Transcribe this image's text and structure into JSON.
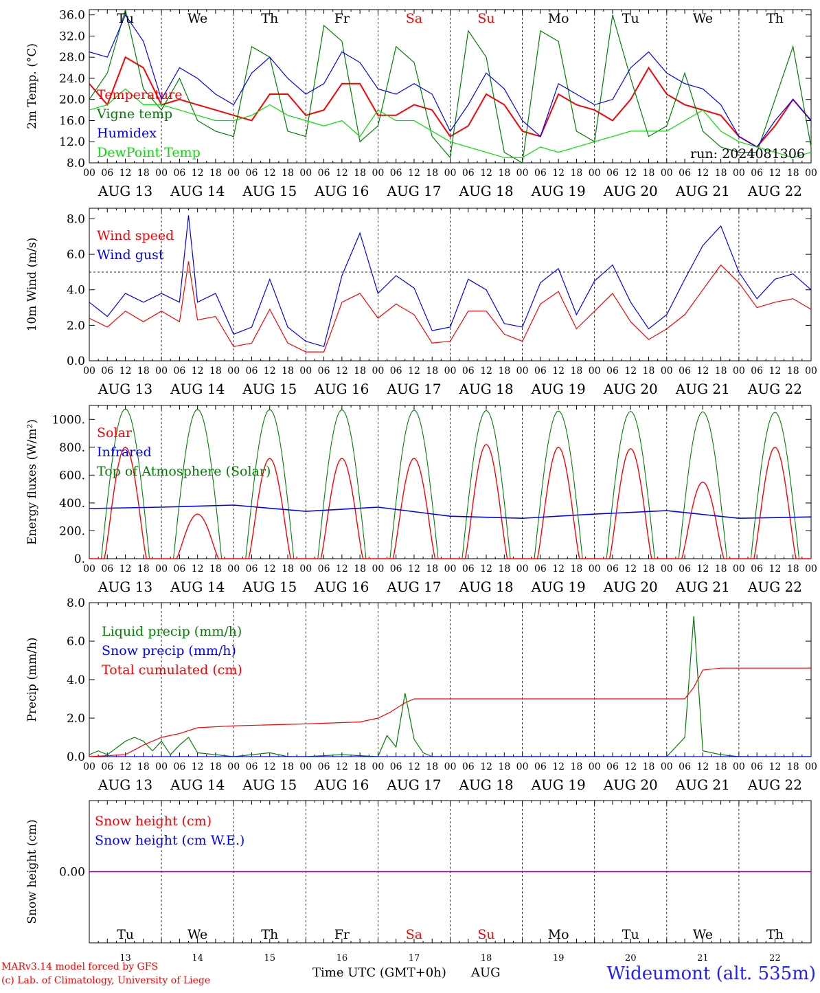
{
  "time_axis": {
    "hour_ticks": [
      "00",
      "06",
      "12",
      "18"
    ],
    "dates": [
      "AUG 13",
      "AUG 14",
      "AUG 15",
      "AUG 16",
      "AUG 17",
      "AUG 18",
      "AUG 19",
      "AUG 20",
      "AUG 21",
      "AUG 22"
    ],
    "weekdays": [
      "Tu",
      "We",
      "Th",
      "Fr",
      "Sa",
      "Su",
      "Mo",
      "Tu",
      "We",
      "Th"
    ],
    "weekday_colors": [
      "#000000",
      "#000000",
      "#000000",
      "#000000",
      "#ff0000",
      "#ff0000",
      "#000000",
      "#000000",
      "#000000",
      "#000000"
    ],
    "day_numbers": [
      "13",
      "14",
      "15",
      "16",
      "17",
      "18",
      "19",
      "20",
      "21",
      "22"
    ],
    "title": "Time UTC (GMT+0h)",
    "month": "AUG"
  },
  "run_label": "run: 2024081306",
  "footer": {
    "credit_line1": "MARv3.14 model forced by GFS",
    "credit_line2": "(c) Lab. of Climatology, University of Liege",
    "station": "Wideumont (alt. 535m)"
  },
  "colors": {
    "red": "#ff0000",
    "green": "#008000",
    "blue": "#0000ff",
    "lightgreen": "#00e000",
    "purple": "#800080"
  },
  "chart_data": [
    {
      "type": "line",
      "ylabel": "2m Temp. (°C)",
      "ylim": [
        8,
        37
      ],
      "yticks": [
        "8.0",
        "12.0",
        "16.0",
        "20.0",
        "24.0",
        "28.0",
        "32.0",
        "36.0"
      ],
      "ytick_values": [
        8,
        12,
        16,
        20,
        24,
        28,
        32,
        36
      ],
      "x_unit": "hours from AUG 13 00 UTC",
      "series": [
        {
          "name": "Temperature",
          "color": "#ff0000",
          "x": [
            0,
            6,
            12,
            18,
            24,
            30,
            36,
            42,
            48,
            54,
            60,
            66,
            72,
            78,
            84,
            90,
            96,
            102,
            108,
            114,
            120,
            126,
            132,
            138,
            144,
            150,
            156,
            162,
            168,
            174,
            180,
            186,
            192,
            198,
            204,
            210,
            216,
            222,
            228,
            234,
            240
          ],
          "y": [
            23,
            19,
            28,
            26,
            19,
            20,
            19,
            18,
            17,
            16,
            21,
            21,
            17,
            18,
            23,
            23,
            17,
            17,
            19,
            18,
            13,
            15,
            21,
            19,
            14,
            13,
            21,
            19,
            18,
            16,
            20,
            26,
            21,
            19,
            18,
            17,
            13,
            11,
            15,
            20,
            16
          ]
        },
        {
          "name": "Vigne temp",
          "color": "#008000",
          "x": [
            0,
            6,
            12,
            18,
            24,
            30,
            36,
            42,
            48,
            54,
            60,
            66,
            72,
            78,
            84,
            90,
            96,
            102,
            108,
            114,
            120,
            126,
            132,
            138,
            144,
            150,
            156,
            162,
            168,
            174,
            180,
            186,
            192,
            198,
            204,
            210,
            216,
            222,
            228,
            234,
            240
          ],
          "y": [
            20,
            25,
            37,
            22,
            18,
            24,
            16,
            14,
            13,
            30,
            28,
            14,
            13,
            34,
            31,
            12,
            15,
            30,
            27,
            13,
            9,
            33,
            28,
            10,
            8,
            33,
            31,
            14,
            12,
            36,
            24,
            13,
            15,
            25,
            14,
            11,
            10,
            10,
            20,
            30,
            11
          ]
        },
        {
          "name": "Humidex",
          "color": "#0000ff",
          "x": [
            0,
            6,
            12,
            18,
            24,
            30,
            36,
            42,
            48,
            54,
            60,
            66,
            72,
            78,
            84,
            90,
            96,
            102,
            108,
            114,
            120,
            126,
            132,
            138,
            144,
            150,
            156,
            162,
            168,
            174,
            180,
            186,
            192,
            198,
            204,
            210,
            216,
            222,
            228,
            234,
            240
          ],
          "y": [
            29,
            28,
            36,
            31,
            20,
            26,
            24,
            21,
            19,
            25,
            28,
            24,
            21,
            23,
            29,
            27,
            22,
            21,
            23,
            21,
            14,
            19,
            25,
            22,
            16,
            13,
            23,
            21,
            19,
            20,
            26,
            29,
            25,
            23,
            22,
            19,
            13,
            11,
            16,
            20,
            16
          ]
        },
        {
          "name": "DewPoint Temp",
          "color": "#00e000",
          "x": [
            0,
            6,
            12,
            18,
            24,
            30,
            36,
            42,
            48,
            54,
            60,
            66,
            72,
            78,
            84,
            90,
            96,
            102,
            108,
            114,
            120,
            126,
            132,
            138,
            144,
            150,
            156,
            162,
            168,
            174,
            180,
            186,
            192,
            198,
            204,
            210,
            216,
            222,
            228,
            234,
            240
          ],
          "y": [
            18,
            19,
            22,
            19,
            19,
            18,
            17,
            16,
            16,
            17,
            19,
            17,
            16,
            15,
            16,
            13,
            18,
            16,
            16,
            14,
            12,
            11,
            10,
            9,
            9,
            11,
            10,
            11,
            12,
            13,
            14,
            14,
            14,
            16,
            18,
            14,
            12,
            11,
            10,
            9,
            10
          ]
        }
      ]
    },
    {
      "type": "line",
      "ylabel": "10m Wind (m/s)",
      "ylim": [
        0,
        8.6
      ],
      "yticks": [
        "0.0",
        "2.0",
        "4.0",
        "6.0",
        "8.0"
      ],
      "ytick_values": [
        0,
        2,
        4,
        6,
        8
      ],
      "reference_line": 5.0,
      "series": [
        {
          "name": "Wind speed",
          "color": "#ff0000",
          "x": [
            0,
            6,
            12,
            18,
            24,
            30,
            33,
            36,
            42,
            48,
            54,
            60,
            66,
            72,
            78,
            84,
            90,
            96,
            102,
            108,
            114,
            120,
            126,
            132,
            138,
            144,
            150,
            156,
            162,
            168,
            174,
            180,
            186,
            192,
            198,
            204,
            210,
            216,
            222,
            228,
            234,
            240
          ],
          "y": [
            2.4,
            1.9,
            2.8,
            2.2,
            2.8,
            2.2,
            5.6,
            2.3,
            2.5,
            0.8,
            1.0,
            2.9,
            1.0,
            0.5,
            0.5,
            3.3,
            3.8,
            2.4,
            3.2,
            2.6,
            1.0,
            1.1,
            2.8,
            2.8,
            1.5,
            1.1,
            3.2,
            3.9,
            1.8,
            2.8,
            3.8,
            2.2,
            1.2,
            1.8,
            2.6,
            4.0,
            5.4,
            4.4,
            3.0,
            3.3,
            3.5,
            2.9
          ]
        },
        {
          "name": "Wind gust",
          "color": "#0000ff",
          "x": [
            0,
            6,
            12,
            18,
            24,
            30,
            33,
            36,
            42,
            48,
            54,
            60,
            66,
            72,
            78,
            84,
            90,
            96,
            102,
            108,
            114,
            120,
            126,
            132,
            138,
            144,
            150,
            156,
            162,
            168,
            174,
            180,
            186,
            192,
            198,
            204,
            210,
            216,
            222,
            228,
            234,
            240
          ],
          "y": [
            3.3,
            2.5,
            3.8,
            3.3,
            3.8,
            3.3,
            8.2,
            3.3,
            3.8,
            1.5,
            1.9,
            4.6,
            1.9,
            1.1,
            0.8,
            4.8,
            7.2,
            3.8,
            4.8,
            4.1,
            1.7,
            1.9,
            4.6,
            4.0,
            2.1,
            1.9,
            4.4,
            5.2,
            2.6,
            4.5,
            5.4,
            3.3,
            1.8,
            2.6,
            4.6,
            6.5,
            7.6,
            5.0,
            3.5,
            4.6,
            4.9,
            4.0
          ]
        }
      ]
    },
    {
      "type": "line",
      "ylabel": "Energy fluxes (W/m²)",
      "ylim": [
        0,
        1100
      ],
      "yticks": [
        "0.",
        "200.",
        "400.",
        "600.",
        "800.",
        "1000."
      ],
      "ytick_values": [
        0,
        200,
        400,
        600,
        800,
        1000
      ],
      "solar_daily_peak": [
        800,
        320,
        720,
        720,
        720,
        820,
        800,
        790,
        550,
        800
      ],
      "toa_daily_peak": [
        1075,
        1072,
        1070,
        1068,
        1066,
        1063,
        1060,
        1057,
        1054,
        1051
      ],
      "infrared_x": [
        0,
        24,
        48,
        72,
        96,
        120,
        144,
        168,
        192,
        216,
        240
      ],
      "infrared_y": [
        360,
        370,
        385,
        340,
        370,
        305,
        290,
        320,
        345,
        290,
        300
      ],
      "series": [
        {
          "name": "Solar",
          "color": "#ff0000"
        },
        {
          "name": "Infrared",
          "color": "#0000ff"
        },
        {
          "name": "Top of Atmosphere (Solar)",
          "color": "#008000"
        }
      ]
    },
    {
      "type": "line",
      "ylabel": "Precip (mm/h)",
      "ylim": [
        0,
        8.0
      ],
      "yticks": [
        "0.0",
        "2.0",
        "4.0",
        "6.0",
        "8.0"
      ],
      "ytick_values": [
        0,
        2,
        4,
        6,
        8
      ],
      "series": [
        {
          "name": "Liquid precip (mm/h)",
          "color": "#008000",
          "x": [
            0,
            3,
            6,
            12,
            15,
            18,
            21,
            24,
            27,
            30,
            33,
            36,
            42,
            48,
            60,
            66,
            72,
            84,
            96,
            99,
            102,
            105,
            108,
            111,
            114,
            120,
            144,
            168,
            192,
            198,
            201,
            204,
            210,
            216,
            240
          ],
          "y": [
            0.1,
            0.3,
            0.1,
            0.8,
            1.0,
            0.8,
            0.3,
            0.8,
            0.1,
            0.6,
            1.0,
            0.2,
            0.1,
            0.0,
            0.2,
            0.0,
            0.0,
            0.1,
            0.0,
            1.1,
            0.5,
            3.3,
            0.9,
            0.2,
            0.0,
            0.0,
            0.0,
            0.0,
            0.0,
            1.0,
            7.3,
            0.3,
            0.1,
            0.0,
            0.0
          ]
        },
        {
          "name": "Snow precip (mm/h)",
          "color": "#0000ff",
          "x": [
            0,
            240
          ],
          "y": [
            0,
            0
          ]
        },
        {
          "name": "Total cumulated (cm)",
          "color": "#ff0000",
          "x": [
            0,
            12,
            18,
            24,
            30,
            36,
            48,
            72,
            90,
            96,
            100,
            105,
            108,
            198,
            201,
            204,
            210,
            240
          ],
          "y": [
            0,
            0.1,
            0.6,
            1.0,
            1.2,
            1.5,
            1.6,
            1.7,
            1.8,
            2.0,
            2.3,
            2.8,
            3.0,
            3.0,
            3.6,
            4.5,
            4.6,
            4.6
          ]
        }
      ]
    },
    {
      "type": "line",
      "ylabel": "Snow height (cm)",
      "ylim": [
        -1,
        1
      ],
      "yticks": [
        "0.00"
      ],
      "ytick_values": [
        0
      ],
      "series": [
        {
          "name": "Snow height (cm)",
          "color": "#ff0000",
          "x": [
            0,
            240
          ],
          "y": [
            0,
            0
          ]
        },
        {
          "name": "Snow height (cm W.E.)",
          "color": "#0000ff",
          "x": [
            0,
            240
          ],
          "y": [
            0,
            0
          ]
        }
      ]
    }
  ]
}
